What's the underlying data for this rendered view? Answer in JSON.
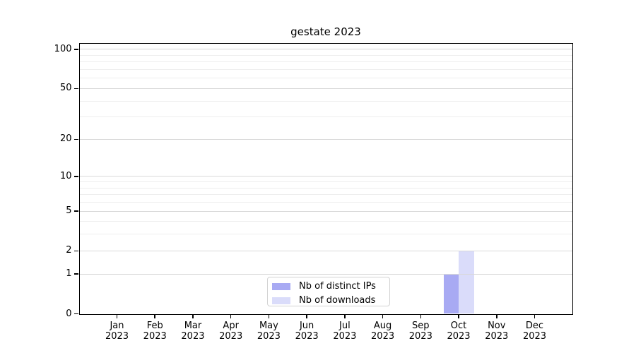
{
  "title": "gestate 2023",
  "chart_data": {
    "type": "bar",
    "title": "gestate 2023",
    "categories": [
      "Jan",
      "Feb",
      "Mar",
      "Apr",
      "May",
      "Jun",
      "Jul",
      "Aug",
      "Sep",
      "Oct",
      "Nov",
      "Dec"
    ],
    "category_year": "2023",
    "series": [
      {
        "name": "Nb of distinct IPs",
        "color": "#a8aaf3",
        "values": [
          0,
          0,
          0,
          0,
          0,
          0,
          0,
          0,
          0,
          1,
          0,
          0
        ]
      },
      {
        "name": "Nb of downloads",
        "color": "#dadcfa",
        "values": [
          0,
          0,
          0,
          0,
          0,
          0,
          0,
          0,
          0,
          2,
          0,
          0
        ]
      }
    ],
    "xlabel": "",
    "ylabel": "",
    "y_scale": "log1p",
    "y_ticks": [
      0,
      1,
      2,
      5,
      10,
      20,
      50,
      100
    ],
    "y_minor_ticks": [
      3,
      4,
      6,
      7,
      8,
      9,
      30,
      40,
      60,
      70,
      80,
      90
    ],
    "ylim": [
      0,
      111
    ],
    "grid": "horizontal",
    "legend_position": "lower center inside"
  },
  "colors": {
    "grid_major": "#d8d8d8",
    "grid_minor": "#eeeeee",
    "axis": "#000000",
    "text": "#000000",
    "legend_border": "#d2d2d2",
    "background": "#ffffff"
  }
}
